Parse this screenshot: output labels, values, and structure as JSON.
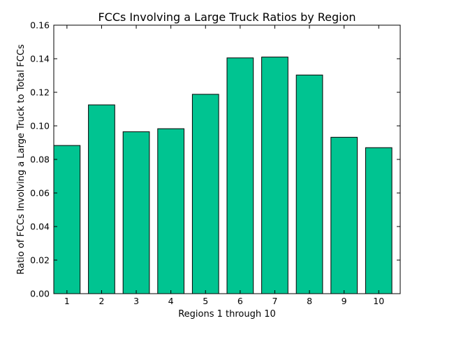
{
  "chart_data": {
    "type": "bar",
    "title": "FCCs Involving a Large Truck Ratios by Region",
    "xlabel": "Regions 1 through 10",
    "ylabel": "Ratio of FCCs Involving a Large Truck to Total FCCs",
    "categories": [
      "1",
      "2",
      "3",
      "4",
      "5",
      "6",
      "7",
      "8",
      "9",
      "10"
    ],
    "values": [
      0.0883,
      0.1125,
      0.0965,
      0.0983,
      0.1188,
      0.1405,
      0.141,
      0.1303,
      0.0932,
      0.087
    ],
    "ylim": [
      0,
      0.16
    ],
    "yticks": [
      "0.00",
      "0.02",
      "0.04",
      "0.06",
      "0.08",
      "0.10",
      "0.12",
      "0.14",
      "0.16"
    ],
    "bar_color": "#00c491",
    "grid": false
  }
}
